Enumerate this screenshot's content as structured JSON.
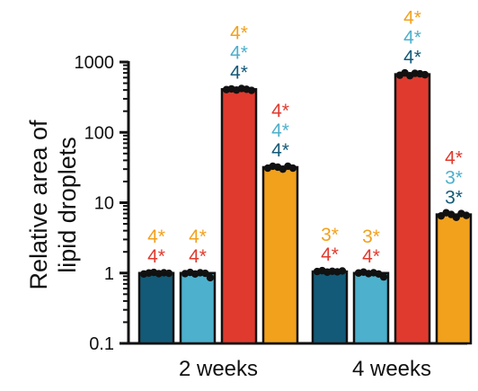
{
  "chart_data": {
    "type": "bar",
    "ylabel": [
      "Relative area of",
      "lipid droplets"
    ],
    "yscale": "log",
    "ylim": [
      0.1,
      1000
    ],
    "yticks": [
      "0.1",
      "1",
      "10",
      "100",
      "1000"
    ],
    "categories": [
      "2 weeks",
      "4 weeks"
    ],
    "colors": [
      "#135a78",
      "#4db0cc",
      "#e03a2e",
      "#f2a11c"
    ],
    "series": [
      {
        "values": [
          1.0,
          1.05
        ],
        "points": [
          [
            0.97,
            1.0,
            1.02,
            0.98,
            1.01,
            0.99
          ],
          [
            1.05,
            1.08,
            1.03,
            1.06,
            1.04,
            1.07
          ]
        ],
        "annotations": [
          [
            {
              "text": "4*",
              "color": "#f2a11c"
            },
            {
              "text": "4*",
              "color": "#e03a2e"
            }
          ],
          [
            {
              "text": "3*",
              "color": "#f2a11c"
            },
            {
              "text": "4*",
              "color": "#e03a2e"
            }
          ]
        ]
      },
      {
        "values": [
          1.0,
          1.0
        ],
        "points": [
          [
            0.98,
            1.02,
            0.97,
            1.01,
            0.99,
            0.86
          ],
          [
            1.0,
            1.03,
            0.98,
            1.01,
            0.97,
            0.88
          ]
        ],
        "annotations": [
          [
            {
              "text": "4*",
              "color": "#f2a11c"
            },
            {
              "text": "4*",
              "color": "#e03a2e"
            }
          ],
          [
            {
              "text": "3*",
              "color": "#f2a11c"
            },
            {
              "text": "4*",
              "color": "#e03a2e"
            }
          ]
        ]
      },
      {
        "values": [
          410,
          670
        ],
        "points": [
          [
            405,
            415,
            400,
            420,
            410,
            395
          ],
          [
            650,
            700,
            640,
            690,
            680,
            660
          ]
        ],
        "annotations": [
          [
            {
              "text": "4*",
              "color": "#f2a11c"
            },
            {
              "text": "4*",
              "color": "#4db0cc"
            },
            {
              "text": "4*",
              "color": "#135a78"
            }
          ],
          [
            {
              "text": "4*",
              "color": "#f2a11c"
            },
            {
              "text": "4*",
              "color": "#4db0cc"
            },
            {
              "text": "4*",
              "color": "#135a78"
            }
          ]
        ]
      },
      {
        "values": [
          32,
          6.8
        ],
        "points": [
          [
            31,
            33,
            32,
            30,
            33,
            31
          ],
          [
            6.5,
            7.2,
            6.8,
            6.2,
            7.0,
            6.6
          ]
        ],
        "annotations": [
          [
            {
              "text": "4*",
              "color": "#e03a2e"
            },
            {
              "text": "4*",
              "color": "#4db0cc"
            },
            {
              "text": "4*",
              "color": "#135a78"
            }
          ],
          [
            {
              "text": "4*",
              "color": "#e03a2e"
            },
            {
              "text": "3*",
              "color": "#4db0cc"
            },
            {
              "text": "3*",
              "color": "#135a78"
            }
          ]
        ]
      }
    ]
  }
}
